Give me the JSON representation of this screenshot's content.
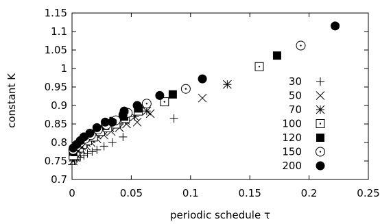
{
  "chart_data": {
    "type": "scatter",
    "title": "",
    "xlabel": "periodic schedule τ",
    "ylabel": "constant K",
    "xlim": [
      0,
      0.25
    ],
    "ylim": [
      0.7,
      1.15
    ],
    "xticks": [
      "0",
      "0.05",
      "0.1",
      "0.15",
      "0.2",
      "0.25"
    ],
    "yticks": [
      "0.7",
      "0.75",
      "0.8",
      "0.85",
      "0.9",
      "0.95",
      "1",
      "1.05",
      "1.1",
      "1.15"
    ],
    "legend_position": "right",
    "grid": false,
    "series": [
      {
        "name": "30",
        "marker": "plus",
        "points": [
          [
            0.0,
            0.74
          ],
          [
            0.002,
            0.75
          ],
          [
            0.004,
            0.755
          ],
          [
            0.007,
            0.76
          ],
          [
            0.01,
            0.765
          ],
          [
            0.013,
            0.77
          ],
          [
            0.017,
            0.775
          ],
          [
            0.021,
            0.78
          ],
          [
            0.027,
            0.79
          ],
          [
            0.034,
            0.8
          ],
          [
            0.043,
            0.815
          ],
          [
            0.086,
            0.865
          ]
        ]
      },
      {
        "name": "50",
        "marker": "cross",
        "points": [
          [
            0.001,
            0.75
          ],
          [
            0.003,
            0.76
          ],
          [
            0.005,
            0.77
          ],
          [
            0.008,
            0.78
          ],
          [
            0.012,
            0.79
          ],
          [
            0.016,
            0.8
          ],
          [
            0.021,
            0.81
          ],
          [
            0.027,
            0.82
          ],
          [
            0.033,
            0.83
          ],
          [
            0.04,
            0.84
          ],
          [
            0.046,
            0.85
          ],
          [
            0.055,
            0.855
          ],
          [
            0.066,
            0.878
          ],
          [
            0.11,
            0.92
          ]
        ]
      },
      {
        "name": "70",
        "marker": "star",
        "points": [
          [
            0.001,
            0.76
          ],
          [
            0.003,
            0.77
          ],
          [
            0.005,
            0.78
          ],
          [
            0.008,
            0.79
          ],
          [
            0.012,
            0.8
          ],
          [
            0.016,
            0.81
          ],
          [
            0.021,
            0.82
          ],
          [
            0.026,
            0.83
          ],
          [
            0.032,
            0.84
          ],
          [
            0.038,
            0.85
          ],
          [
            0.045,
            0.86
          ],
          [
            0.053,
            0.87
          ],
          [
            0.063,
            0.885
          ],
          [
            0.131,
            0.957
          ]
        ]
      },
      {
        "name": "100",
        "marker": "dotted-square",
        "points": [
          [
            0.001,
            0.765
          ],
          [
            0.003,
            0.775
          ],
          [
            0.006,
            0.785
          ],
          [
            0.009,
            0.795
          ],
          [
            0.013,
            0.805
          ],
          [
            0.018,
            0.815
          ],
          [
            0.024,
            0.83
          ],
          [
            0.03,
            0.84
          ],
          [
            0.037,
            0.85
          ],
          [
            0.045,
            0.865
          ],
          [
            0.056,
            0.885
          ],
          [
            0.078,
            0.91
          ],
          [
            0.158,
            1.005
          ]
        ]
      },
      {
        "name": "120",
        "marker": "filled-square",
        "points": [
          [
            0.001,
            0.775
          ],
          [
            0.003,
            0.785
          ],
          [
            0.006,
            0.795
          ],
          [
            0.01,
            0.81
          ],
          [
            0.015,
            0.82
          ],
          [
            0.021,
            0.835
          ],
          [
            0.028,
            0.845
          ],
          [
            0.035,
            0.858
          ],
          [
            0.044,
            0.87
          ],
          [
            0.056,
            0.892
          ],
          [
            0.085,
            0.93
          ],
          [
            0.173,
            1.035
          ]
        ]
      },
      {
        "name": "150",
        "marker": "dotted-circle",
        "points": [
          [
            0.001,
            0.78
          ],
          [
            0.004,
            0.79
          ],
          [
            0.007,
            0.8
          ],
          [
            0.011,
            0.81
          ],
          [
            0.016,
            0.82
          ],
          [
            0.022,
            0.835
          ],
          [
            0.029,
            0.848
          ],
          [
            0.037,
            0.86
          ],
          [
            0.047,
            0.88
          ],
          [
            0.063,
            0.905
          ],
          [
            0.096,
            0.945
          ],
          [
            0.193,
            1.062
          ]
        ]
      },
      {
        "name": "200",
        "marker": "filled-circle",
        "points": [
          [
            0.001,
            0.785
          ],
          [
            0.004,
            0.795
          ],
          [
            0.007,
            0.805
          ],
          [
            0.01,
            0.815
          ],
          [
            0.015,
            0.825
          ],
          [
            0.021,
            0.84
          ],
          [
            0.028,
            0.855
          ],
          [
            0.034,
            0.855
          ],
          [
            0.043,
            0.875
          ],
          [
            0.044,
            0.885
          ],
          [
            0.055,
            0.9
          ],
          [
            0.074,
            0.927
          ],
          [
            0.11,
            0.972
          ],
          [
            0.222,
            1.115
          ]
        ]
      }
    ]
  }
}
